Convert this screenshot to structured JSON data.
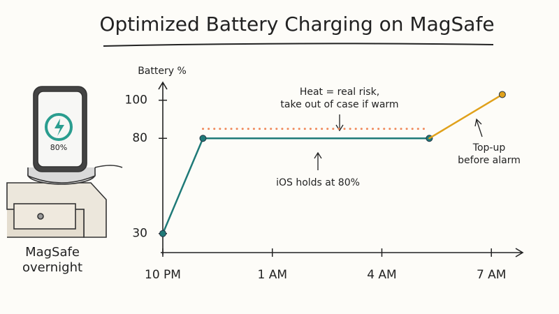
{
  "chart_data": {
    "type": "line",
    "title": "Optimized Battery Charging on MagSafe",
    "y_label": "Battery %",
    "xlim": [
      22,
      31.8
    ],
    "ylim": [
      20,
      105
    ],
    "xticks": [
      {
        "value": 22,
        "label": "10 PM"
      },
      {
        "value": 25,
        "label": "1 AM"
      },
      {
        "value": 28,
        "label": "4 AM"
      },
      {
        "value": 31,
        "label": "7 AM"
      }
    ],
    "yticks": [
      30,
      80,
      100
    ],
    "series": [
      {
        "color": "#1f7a78",
        "style": "solid",
        "markers": true,
        "x": [
          22,
          23.1,
          29.3
        ],
        "values": [
          30,
          80,
          80
        ]
      },
      {
        "color": "#e0a11b",
        "style": "solid",
        "markers": true,
        "x": [
          29.3,
          31.3
        ],
        "values": [
          80,
          103
        ]
      },
      {
        "color": "#f08a5d",
        "style": "dotted",
        "markers": false,
        "x": [
          23.1,
          29.3
        ],
        "values": [
          85,
          85
        ]
      }
    ],
    "annotations": [
      {
        "lines": [
          "Heat = real risk,",
          "take out of case if warm"
        ]
      },
      {
        "lines": [
          "iOS holds at 80%"
        ]
      },
      {
        "lines": [
          "Top-up",
          "before alarm"
        ]
      }
    ]
  },
  "illustration": {
    "screen": "80%",
    "caption": [
      "MagSafe",
      "overnight"
    ]
  }
}
